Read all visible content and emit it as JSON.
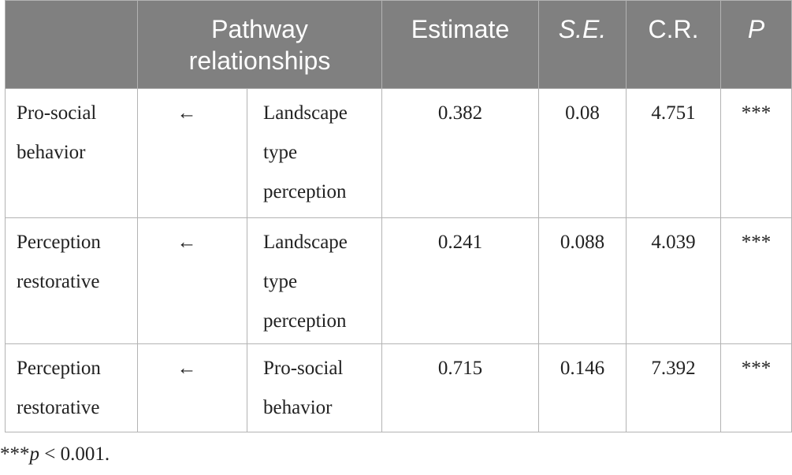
{
  "table": {
    "headers": {
      "blank": "",
      "pathway": "Pathway relationships",
      "estimate": "Estimate",
      "se": "S.E.",
      "cr": "C.R.",
      "p": "P"
    },
    "rows": [
      {
        "outcome": "Pro-social behavior",
        "arrow": "←",
        "predictor": "Landscape type perception",
        "estimate": "0.382",
        "se": "0.08",
        "cr": "4.751",
        "p": "***"
      },
      {
        "outcome": "Perception restorative",
        "arrow": "←",
        "predictor": "Landscape type perception",
        "estimate": "0.241",
        "se": "0.088",
        "cr": "4.039",
        "p": "***"
      },
      {
        "outcome": "Perception restorative",
        "arrow": "←",
        "predictor": "Pro-social behavior",
        "estimate": "0.715",
        "se": "0.146",
        "cr": "7.392",
        "p": "***"
      }
    ]
  },
  "footnote": {
    "stars": "***",
    "p_symbol": "p",
    "rest": " < 0.001."
  },
  "colors": {
    "header_bg": "#808080",
    "header_text": "#ffffff",
    "border": "#b3b3b3",
    "body_text": "#222222"
  }
}
